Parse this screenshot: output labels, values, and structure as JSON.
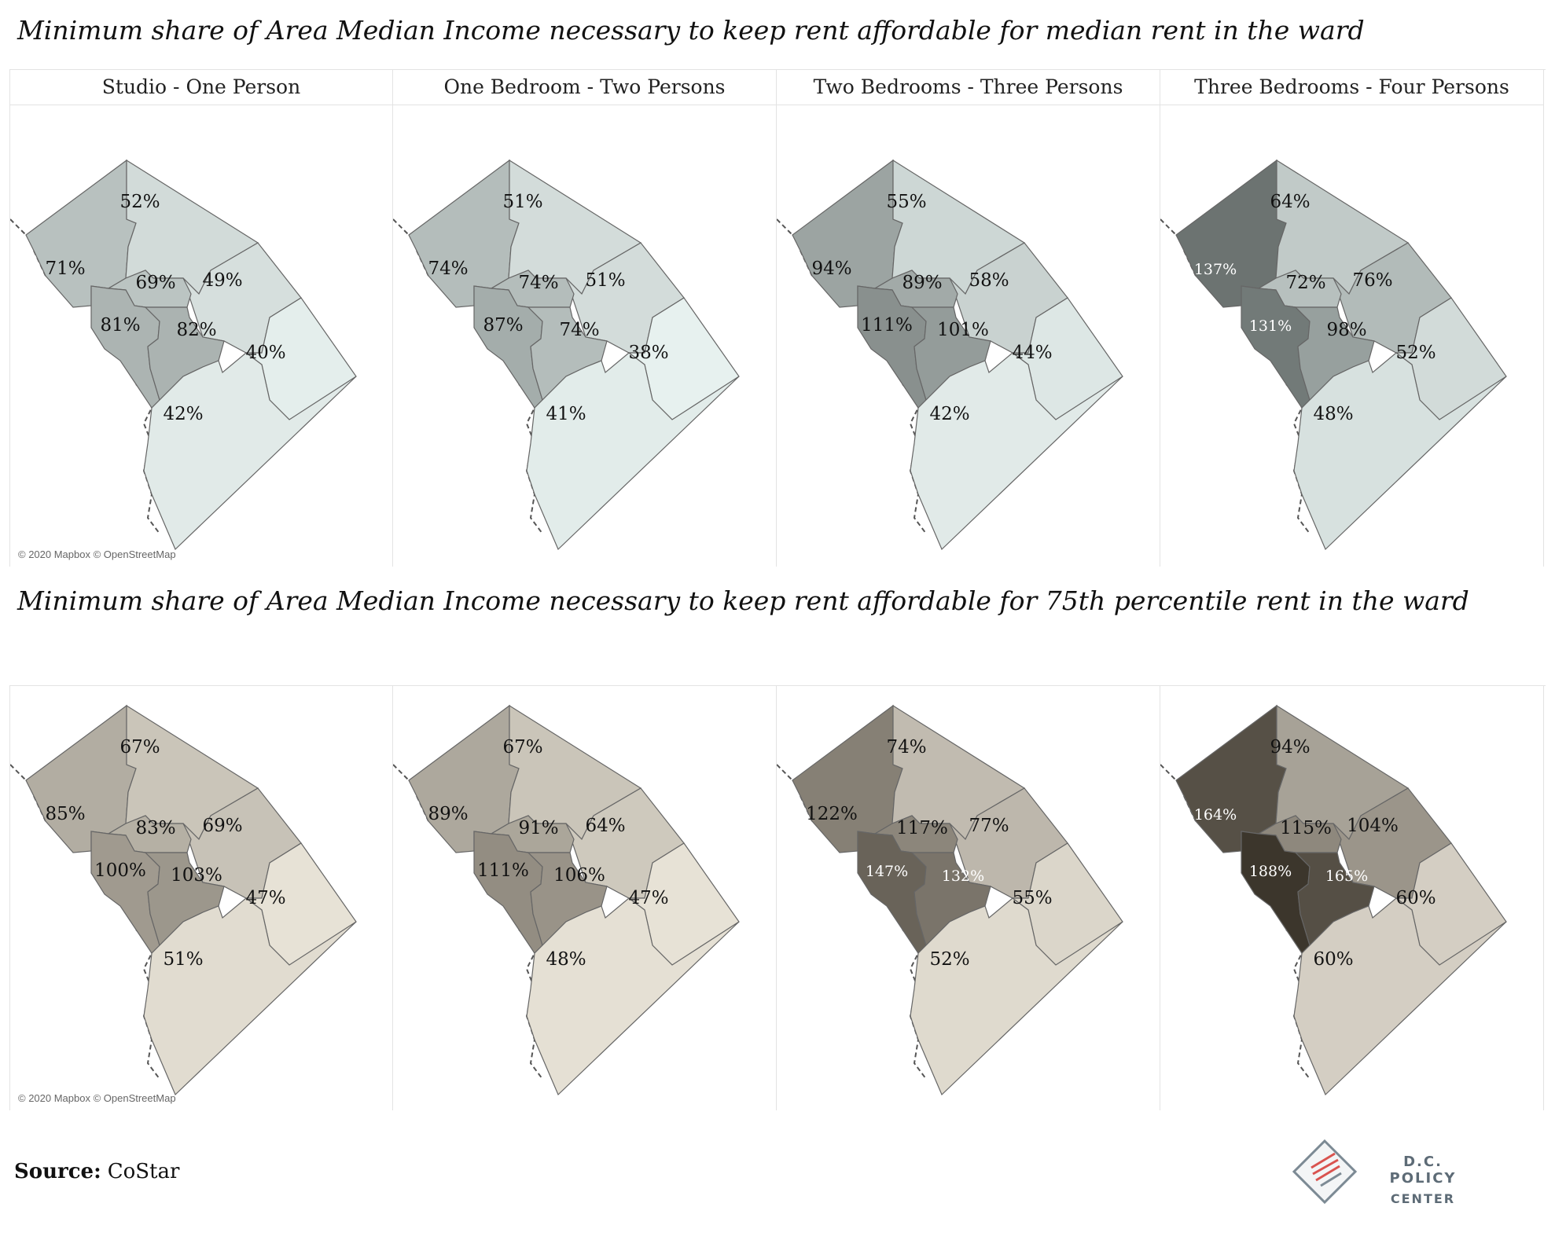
{
  "title_top": "Minimum share of Area Median Income necessary to keep rent affordable for median rent in the ward",
  "title_bottom": "Minimum share of Area Median Income necessary to keep rent affordable for 75th percentile rent in the ward",
  "attribution": "© 2020 Mapbox © OpenStreetMap",
  "source_label": "Source:",
  "source_value": "CoStar",
  "logo": {
    "line1": "D.C. POLICY",
    "line2": "CENTER"
  },
  "rows": [
    {
      "id": "median",
      "color_low": "#eef8f6",
      "color_high": "#343a38",
      "panels": [
        {
          "header": "Studio - One Person",
          "wards": {
            "w3": "71%",
            "w4": "52%",
            "w1": "69%",
            "w5": "49%",
            "w2": "81%",
            "w6": "82%",
            "w7": "40%",
            "w8": "42%"
          }
        },
        {
          "header": "One Bedroom - Two Persons",
          "wards": {
            "w3": "74%",
            "w4": "51%",
            "w1": "74%",
            "w5": "51%",
            "w2": "87%",
            "w6": "74%",
            "w7": "38%",
            "w8": "41%"
          }
        },
        {
          "header": "Two Bedrooms - Three Persons",
          "wards": {
            "w3": "94%",
            "w4": "55%",
            "w1": "89%",
            "w5": "58%",
            "w2": "111%",
            "w6": "101%",
            "w7": "44%",
            "w8": "42%"
          }
        },
        {
          "header": "Three Bedrooms - Four Persons",
          "wards": {
            "w3": "137%",
            "w4": "64%",
            "w1": "72%",
            "w5": "76%",
            "w2": "131%",
            "w6": "98%",
            "w7": "52%",
            "w8": "48%"
          }
        }
      ]
    },
    {
      "id": "p75",
      "color_low": "#fdf8ec",
      "color_high": "#3a342a",
      "panels": [
        {
          "header": "",
          "wards": {
            "w3": "85%",
            "w4": "67%",
            "w1": "83%",
            "w5": "69%",
            "w2": "100%",
            "w6": "103%",
            "w7": "47%",
            "w8": "51%"
          }
        },
        {
          "header": "",
          "wards": {
            "w3": "89%",
            "w4": "67%",
            "w1": "91%",
            "w5": "64%",
            "w2": "111%",
            "w6": "106%",
            "w7": "47%",
            "w8": "48%"
          }
        },
        {
          "header": "",
          "wards": {
            "w3": "122%",
            "w4": "74%",
            "w1": "117%",
            "w5": "77%",
            "w2": "147%",
            "w6": "132%",
            "w7": "55%",
            "w8": "52%"
          }
        },
        {
          "header": "",
          "wards": {
            "w3": "164%",
            "w4": "94%",
            "w1": "115%",
            "w5": "104%",
            "w2": "188%",
            "w6": "165%",
            "w7": "60%",
            "w8": "60%"
          }
        }
      ]
    }
  ]
}
